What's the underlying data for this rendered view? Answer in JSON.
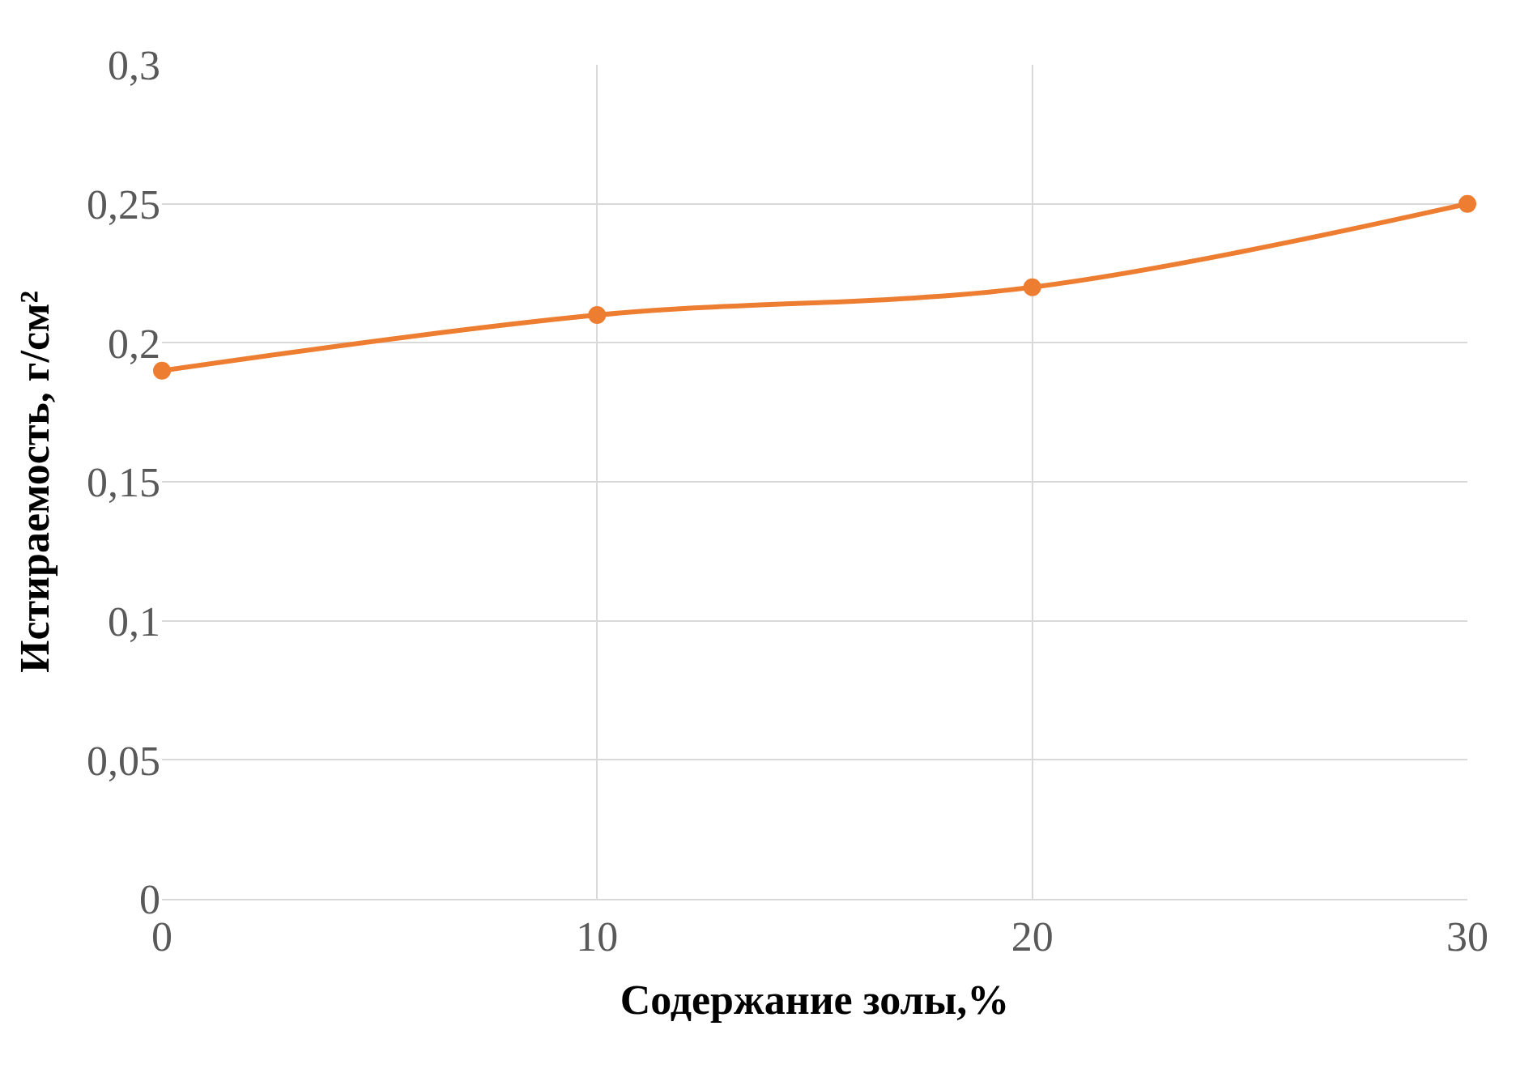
{
  "chart_data": {
    "type": "line",
    "xlabel": "Содержание золы,%",
    "ylabel": "Истираемость, г/см²",
    "x": [
      0,
      10,
      20,
      30
    ],
    "series": [
      {
        "color": "#ed7d31",
        "values": [
          0.19,
          0.21,
          0.22,
          0.25
        ]
      }
    ],
    "xlim": [
      0,
      30
    ],
    "xticks": [
      0,
      10,
      20,
      30
    ],
    "ylim": [
      0,
      0.3
    ],
    "yticks": [
      0,
      {
        "value": 0.05,
        "label": "0,05"
      },
      {
        "value": 0.1,
        "label": "0,1"
      },
      {
        "value": 0.15,
        "label": "0,15"
      },
      {
        "value": 0.2,
        "label": "0,2"
      },
      {
        "value": 0.25,
        "label": "0,25"
      },
      {
        "value": 0.3,
        "label": "0,3"
      }
    ],
    "grid": true,
    "marker": "circle",
    "line_style": "solid"
  }
}
